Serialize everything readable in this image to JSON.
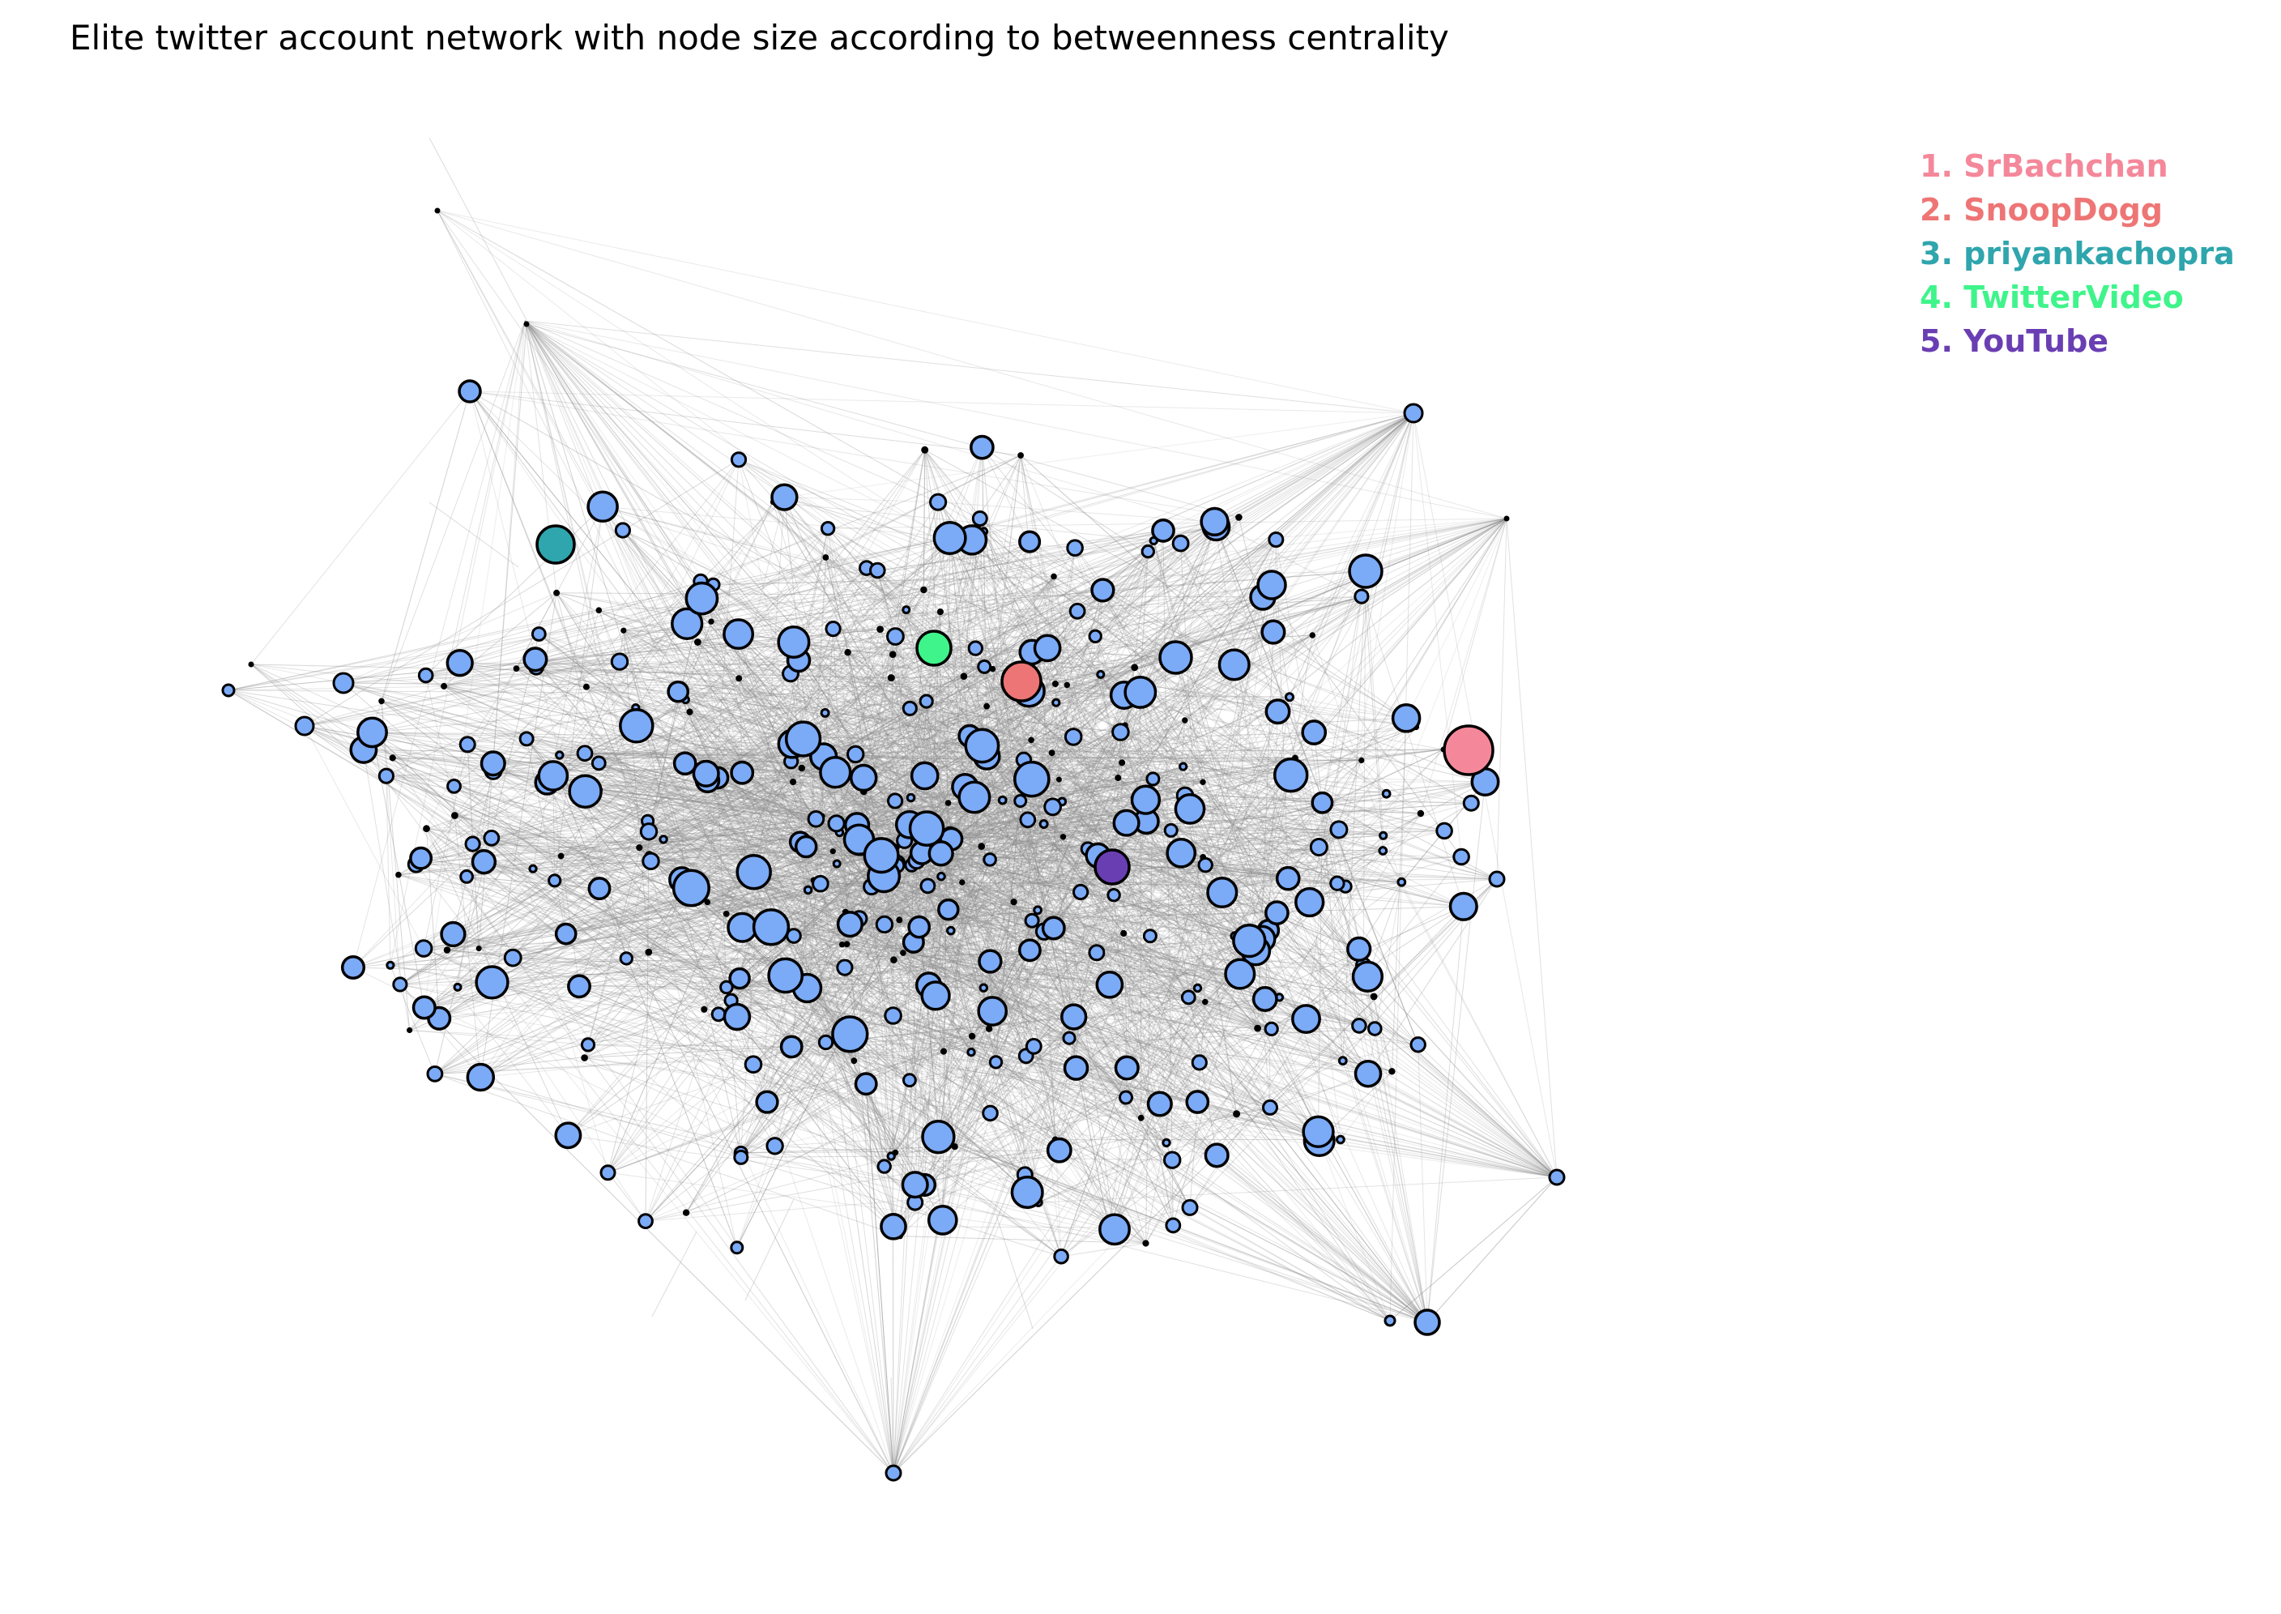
{
  "title": "Elite twitter account network with node size according to betweenness centrality",
  "colors": {
    "default_node": "#7baaf7",
    "node_outline": "#000000",
    "edge": "#8c8c8c",
    "background": "#ffffff"
  },
  "legend": [
    {
      "rank": "1.",
      "name": "SrBachchan",
      "label": "1. SrBachchan",
      "color": "#f4889a"
    },
    {
      "rank": "2.",
      "name": "SnoopDogg",
      "label": "2. SnoopDogg",
      "color": "#ee7575"
    },
    {
      "rank": "3.",
      "name": "priyankachopra",
      "label": "3. priyankachopra",
      "color": "#2fa5ad"
    },
    {
      "rank": "4.",
      "name": "TwitterVideo",
      "label": "4. TwitterVideo",
      "color": "#3ff48a"
    },
    {
      "rank": "5.",
      "name": "YouTube",
      "label": "5. YouTube",
      "color": "#6a3eb3"
    }
  ]
}
